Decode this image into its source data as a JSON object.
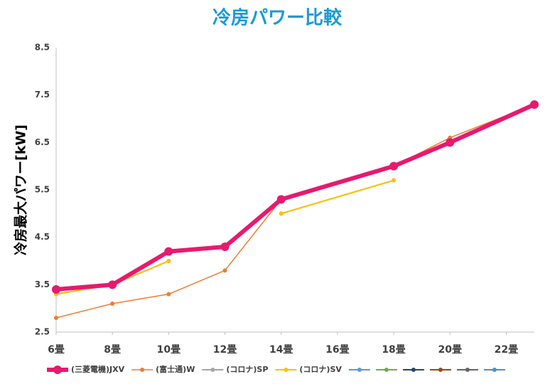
{
  "chart_data": {
    "type": "line",
    "title": "冷房パワー比較",
    "ylabel": "冷房最大パワー[kW]",
    "x": [
      6,
      8,
      10,
      12,
      14,
      18,
      20,
      23
    ],
    "xlim": [
      6,
      23
    ],
    "xticks": [
      {
        "value": 6,
        "label": "6畳"
      },
      {
        "value": 8,
        "label": "8畳"
      },
      {
        "value": 10,
        "label": "10畳"
      },
      {
        "value": 12,
        "label": "12畳"
      },
      {
        "value": 14,
        "label": "14畳"
      },
      {
        "value": 16,
        "label": "16畳"
      },
      {
        "value": 18,
        "label": "18畳"
      },
      {
        "value": 20,
        "label": "20畳"
      },
      {
        "value": 22,
        "label": "22畳"
      }
    ],
    "ylim": [
      2.5,
      8.5
    ],
    "yticks": [
      2.5,
      3.5,
      4.5,
      5.5,
      6.5,
      7.5,
      8.5
    ],
    "grid": false,
    "legend": "bottom",
    "series": [
      {
        "name": "(三菱電機)JXV",
        "color": "#e8196e",
        "values": [
          3.4,
          3.5,
          4.2,
          4.3,
          5.3,
          6.0,
          6.5,
          7.3
        ]
      },
      {
        "name": "(富士通)W",
        "color": "#ed7d31",
        "values": [
          2.8,
          3.1,
          3.3,
          3.8,
          5.3,
          6.0,
          6.6,
          7.3
        ]
      },
      {
        "name": "(コロナ)SP",
        "color": "#a5a5a5",
        "values": [
          3.3,
          3.5,
          4.0,
          null,
          5.0,
          5.7,
          null,
          null
        ]
      },
      {
        "name": "(コロナ)SV",
        "color": "#ffc000",
        "values": [
          3.3,
          3.5,
          4.0,
          null,
          5.0,
          5.7,
          null,
          null
        ]
      },
      {
        "color": "#5b9bd5",
        "values": [
          null,
          null,
          null,
          null,
          null,
          null,
          null,
          null
        ]
      },
      {
        "color": "#70ad47",
        "values": [
          null,
          null,
          null,
          null,
          null,
          null,
          null,
          null
        ]
      },
      {
        "color": "#264478",
        "values": [
          null,
          null,
          null,
          null,
          null,
          null,
          null,
          null
        ]
      },
      {
        "color": "#9e480e",
        "values": [
          null,
          null,
          null,
          null,
          null,
          null,
          null,
          null
        ]
      },
      {
        "color": "#636363",
        "values": [
          null,
          null,
          null,
          null,
          null,
          null,
          null,
          null
        ]
      },
      {
        "color": "#4a90c8",
        "values": [
          null,
          null,
          null,
          null,
          null,
          null,
          null,
          null
        ]
      }
    ]
  }
}
